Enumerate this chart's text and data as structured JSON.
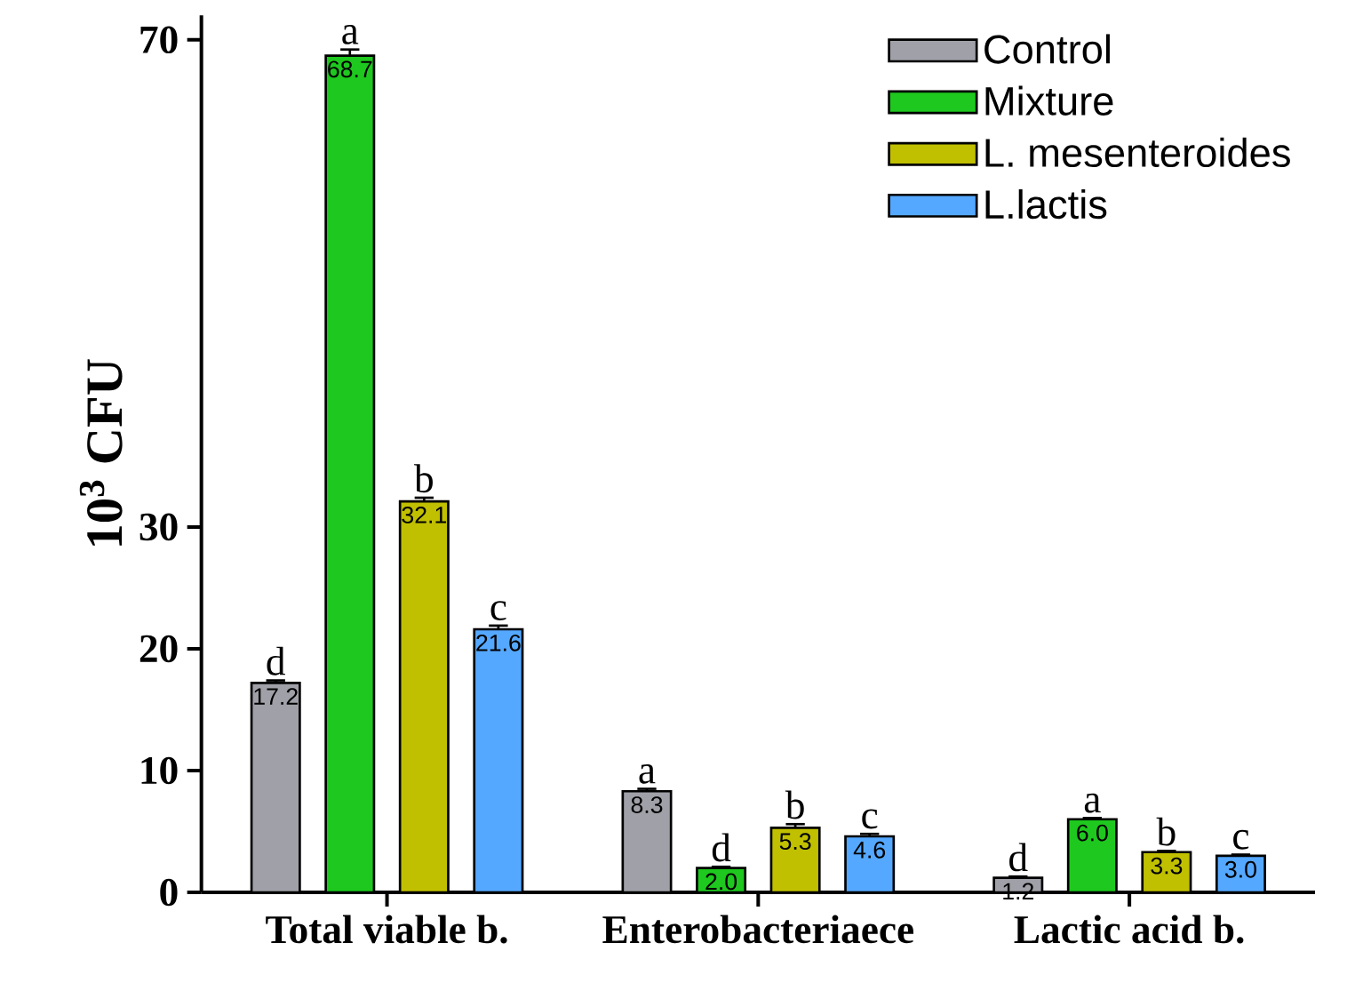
{
  "chart_data": {
    "type": "bar",
    "ylabel": "10$^{3}$ CFU",
    "categories": [
      "Total viable b.",
      "Enterobacteriaece",
      "Lactic acid b."
    ],
    "series": [
      {
        "name": "Control",
        "color": "#a0a0a8",
        "values": [
          17.2,
          8.3,
          1.2
        ],
        "errors": [
          0.2,
          0.2,
          0.1
        ],
        "value_labels": [
          "17.2",
          "8.3",
          "1.2"
        ]
      },
      {
        "name": "Mixture",
        "color": "#1ec81e",
        "values": [
          68.7,
          2.0,
          6.0
        ],
        "errors": [
          0.5,
          0.1,
          0.1
        ],
        "value_labels": [
          "68.7",
          "2.0",
          "6.0"
        ]
      },
      {
        "name": "L. mesenteroides",
        "color": "#c0c000",
        "values": [
          32.1,
          5.3,
          3.3
        ],
        "errors": [
          0.3,
          0.3,
          0.1
        ],
        "value_labels": [
          "32.1",
          "5.3",
          "3.3"
        ]
      },
      {
        "name": "L.lactis",
        "color": "#55a8ff",
        "values": [
          21.6,
          4.6,
          3.0
        ],
        "errors": [
          0.3,
          0.2,
          0.1
        ],
        "value_labels": [
          "21.6",
          "4.6",
          "3.0"
        ]
      }
    ],
    "ylim": [
      0,
      72
    ],
    "yticks": [
      0,
      10,
      20,
      30,
      70
    ],
    "legend": "top right",
    "grid": false,
    "annotations": [
      "d",
      "a",
      "b",
      "c",
      "a",
      "d",
      "b",
      "c",
      "d",
      "a",
      "b",
      "c"
    ]
  }
}
